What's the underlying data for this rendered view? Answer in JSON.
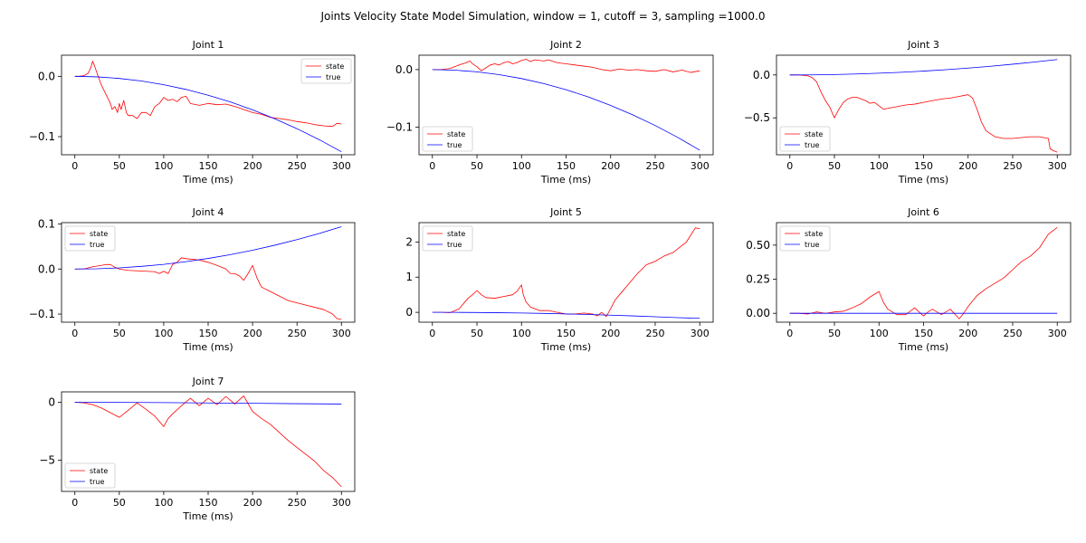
{
  "figure": {
    "suptitle": "Joints Velocity State Model Simulation, window = 1, cutoff = 3, sampling =1000.0"
  },
  "colors": {
    "state": "#ff0000",
    "true": "#0000ff"
  },
  "chart_data": [
    {
      "type": "line",
      "title": "Joint 1",
      "xlabel": "Time (ms)",
      "ylabel": "",
      "xlim": [
        -15,
        315
      ],
      "ylim": [
        -0.13,
        0.035
      ],
      "xticks": [
        0,
        50,
        100,
        150,
        200,
        250,
        300
      ],
      "xtick_labels": [
        "0",
        "50",
        "100",
        "150",
        "200",
        "250",
        "300"
      ],
      "yticks": [
        0.0,
        -0.1
      ],
      "ytick_labels": [
        "0.0",
        "−0.1"
      ],
      "legend": "top-right",
      "grid": false,
      "series": [
        {
          "name": "state",
          "x": [
            0,
            5,
            10,
            15,
            18,
            20,
            22,
            25,
            30,
            35,
            40,
            42,
            45,
            48,
            50,
            52,
            55,
            58,
            60,
            65,
            70,
            75,
            80,
            85,
            90,
            95,
            100,
            105,
            110,
            115,
            120,
            125,
            130,
            140,
            150,
            160,
            170,
            180,
            190,
            200,
            210,
            220,
            230,
            240,
            250,
            260,
            270,
            280,
            290,
            295,
            300
          ],
          "y": [
            0.0,
            0.0,
            0.001,
            0.005,
            0.015,
            0.025,
            0.018,
            0.005,
            -0.015,
            -0.03,
            -0.045,
            -0.055,
            -0.05,
            -0.06,
            -0.045,
            -0.055,
            -0.04,
            -0.06,
            -0.065,
            -0.065,
            -0.07,
            -0.06,
            -0.06,
            -0.065,
            -0.05,
            -0.045,
            -0.035,
            -0.04,
            -0.038,
            -0.042,
            -0.035,
            -0.033,
            -0.045,
            -0.048,
            -0.045,
            -0.047,
            -0.046,
            -0.05,
            -0.055,
            -0.06,
            -0.063,
            -0.068,
            -0.07,
            -0.072,
            -0.075,
            -0.077,
            -0.08,
            -0.082,
            -0.083,
            -0.078,
            -0.079
          ]
        },
        {
          "name": "true",
          "x": [
            0,
            25,
            50,
            75,
            100,
            125,
            150,
            175,
            200,
            225,
            250,
            275,
            300
          ],
          "y": [
            0.0,
            -0.0009,
            -0.0035,
            -0.0078,
            -0.0139,
            -0.0217,
            -0.0313,
            -0.0425,
            -0.0556,
            -0.0703,
            -0.0868,
            -0.105,
            -0.125
          ]
        }
      ]
    },
    {
      "type": "line",
      "title": "Joint 2",
      "xlabel": "Time (ms)",
      "ylabel": "",
      "xlim": [
        -15,
        315
      ],
      "ylim": [
        -0.148,
        0.025
      ],
      "xticks": [
        0,
        50,
        100,
        150,
        200,
        250,
        300
      ],
      "xtick_labels": [
        "0",
        "50",
        "100",
        "150",
        "200",
        "250",
        "300"
      ],
      "yticks": [
        0.0,
        -0.1
      ],
      "ytick_labels": [
        "0.0",
        "−0.1"
      ],
      "legend": "bottom-left",
      "grid": false,
      "series": [
        {
          "name": "state",
          "x": [
            0,
            10,
            20,
            30,
            38,
            42,
            45,
            50,
            55,
            60,
            65,
            70,
            75,
            80,
            85,
            90,
            95,
            100,
            105,
            110,
            115,
            120,
            125,
            130,
            140,
            150,
            160,
            170,
            180,
            190,
            200,
            210,
            220,
            230,
            240,
            250,
            260,
            270,
            280,
            290,
            300
          ],
          "y": [
            0.0,
            0.0,
            0.002,
            0.008,
            0.012,
            0.015,
            0.01,
            0.005,
            -0.002,
            0.003,
            0.008,
            0.01,
            0.008,
            0.012,
            0.014,
            0.01,
            0.012,
            0.016,
            0.018,
            0.014,
            0.017,
            0.016,
            0.015,
            0.017,
            0.012,
            0.01,
            0.008,
            0.006,
            0.004,
            0.0,
            -0.002,
            0.001,
            -0.001,
            0.0,
            -0.002,
            -0.003,
            0.0,
            -0.004,
            -0.001,
            -0.005,
            -0.002
          ]
        },
        {
          "name": "true",
          "x": [
            0,
            25,
            50,
            75,
            100,
            125,
            150,
            175,
            200,
            225,
            250,
            275,
            300
          ],
          "y": [
            0.0,
            -0.001,
            -0.0039,
            -0.0088,
            -0.0156,
            -0.0243,
            -0.035,
            -0.0476,
            -0.0622,
            -0.0788,
            -0.0972,
            -0.1176,
            -0.14
          ]
        }
      ]
    },
    {
      "type": "line",
      "title": "Joint 3",
      "xlabel": "Time (ms)",
      "ylabel": "",
      "xlim": [
        -15,
        315
      ],
      "ylim": [
        -0.93,
        0.23
      ],
      "xticks": [
        0,
        50,
        100,
        150,
        200,
        250,
        300
      ],
      "xtick_labels": [
        "0",
        "50",
        "100",
        "150",
        "200",
        "250",
        "300"
      ],
      "yticks": [
        0.0,
        -0.5
      ],
      "ytick_labels": [
        "0.0",
        "−0.5"
      ],
      "legend": "bottom-left",
      "grid": false,
      "series": [
        {
          "name": "state",
          "x": [
            0,
            10,
            20,
            25,
            30,
            35,
            40,
            45,
            50,
            55,
            60,
            65,
            70,
            75,
            80,
            85,
            90,
            95,
            100,
            105,
            110,
            120,
            130,
            140,
            150,
            160,
            170,
            180,
            190,
            195,
            200,
            205,
            210,
            215,
            220,
            230,
            240,
            250,
            260,
            270,
            280,
            290,
            292,
            295,
            300
          ],
          "y": [
            0.0,
            0.0,
            -0.01,
            -0.03,
            -0.08,
            -0.2,
            -0.3,
            -0.38,
            -0.5,
            -0.4,
            -0.32,
            -0.28,
            -0.26,
            -0.26,
            -0.28,
            -0.3,
            -0.33,
            -0.32,
            -0.36,
            -0.4,
            -0.39,
            -0.37,
            -0.35,
            -0.34,
            -0.32,
            -0.3,
            -0.28,
            -0.27,
            -0.25,
            -0.24,
            -0.23,
            -0.27,
            -0.4,
            -0.55,
            -0.65,
            -0.72,
            -0.74,
            -0.74,
            -0.73,
            -0.72,
            -0.72,
            -0.74,
            -0.86,
            -0.88,
            -0.9
          ]
        },
        {
          "name": "true",
          "x": [
            0,
            25,
            50,
            75,
            100,
            125,
            150,
            175,
            200,
            225,
            250,
            275,
            300
          ],
          "y": [
            0.0,
            0.001,
            0.005,
            0.011,
            0.02,
            0.031,
            0.045,
            0.061,
            0.08,
            0.101,
            0.125,
            0.151,
            0.18
          ]
        }
      ]
    },
    {
      "type": "line",
      "title": "Joint 4",
      "xlabel": "Time (ms)",
      "ylabel": "",
      "xlim": [
        -15,
        315
      ],
      "ylim": [
        -0.118,
        0.103
      ],
      "xticks": [
        0,
        50,
        100,
        150,
        200,
        250,
        300
      ],
      "xtick_labels": [
        "0",
        "50",
        "100",
        "150",
        "200",
        "250",
        "300"
      ],
      "yticks": [
        0.1,
        0.0,
        -0.1
      ],
      "ytick_labels": [
        "0.1",
        "0.0",
        "−0.1"
      ],
      "legend": "top-left",
      "grid": false,
      "series": [
        {
          "name": "state",
          "x": [
            0,
            10,
            20,
            30,
            35,
            40,
            45,
            50,
            60,
            70,
            80,
            90,
            95,
            100,
            105,
            110,
            115,
            120,
            125,
            130,
            140,
            150,
            160,
            170,
            175,
            180,
            185,
            190,
            195,
            200,
            205,
            210,
            220,
            230,
            240,
            250,
            260,
            270,
            280,
            290,
            295,
            300
          ],
          "y": [
            0.0,
            0.0,
            0.005,
            0.008,
            0.01,
            0.01,
            0.004,
            0.0,
            -0.003,
            -0.004,
            -0.005,
            -0.006,
            -0.01,
            -0.005,
            -0.01,
            0.01,
            0.015,
            0.025,
            0.023,
            0.022,
            0.02,
            0.015,
            0.008,
            0.0,
            -0.01,
            -0.01,
            -0.015,
            -0.025,
            -0.01,
            0.008,
            -0.02,
            -0.04,
            -0.05,
            -0.06,
            -0.07,
            -0.075,
            -0.08,
            -0.085,
            -0.09,
            -0.1,
            -0.11,
            -0.112
          ]
        },
        {
          "name": "true",
          "x": [
            0,
            25,
            50,
            75,
            100,
            125,
            150,
            175,
            200,
            225,
            250,
            275,
            300
          ],
          "y": [
            0.0,
            0.0006,
            0.0026,
            0.0059,
            0.0104,
            0.0163,
            0.0235,
            0.032,
            0.0418,
            0.0529,
            0.0653,
            0.079,
            0.094
          ]
        }
      ]
    },
    {
      "type": "line",
      "title": "Joint 5",
      "xlabel": "Time (ms)",
      "ylabel": "",
      "xlim": [
        -15,
        315
      ],
      "ylim": [
        -0.28,
        2.55
      ],
      "xticks": [
        0,
        50,
        100,
        150,
        200,
        250,
        300
      ],
      "xtick_labels": [
        "0",
        "50",
        "100",
        "150",
        "200",
        "250",
        "300"
      ],
      "yticks": [
        2,
        1,
        0
      ],
      "ytick_labels": [
        "2",
        "1",
        "0"
      ],
      "legend": "top-left",
      "grid": false,
      "series": [
        {
          "name": "state",
          "x": [
            0,
            10,
            20,
            30,
            40,
            45,
            50,
            55,
            60,
            70,
            80,
            90,
            95,
            100,
            102,
            105,
            110,
            120,
            130,
            140,
            150,
            160,
            170,
            180,
            185,
            190,
            195,
            200,
            205,
            210,
            220,
            230,
            240,
            250,
            260,
            270,
            280,
            285,
            290,
            295,
            300
          ],
          "y": [
            0.0,
            0.0,
            -0.01,
            0.1,
            0.4,
            0.5,
            0.62,
            0.5,
            0.42,
            0.4,
            0.45,
            0.5,
            0.6,
            0.78,
            0.5,
            0.3,
            0.15,
            0.05,
            0.05,
            0.0,
            -0.05,
            -0.05,
            -0.02,
            -0.05,
            -0.1,
            0.0,
            -0.12,
            0.1,
            0.35,
            0.5,
            0.8,
            1.1,
            1.35,
            1.45,
            1.6,
            1.7,
            1.9,
            2.0,
            2.2,
            2.4,
            2.38
          ]
        },
        {
          "name": "true",
          "x": [
            0,
            25,
            50,
            75,
            100,
            125,
            150,
            175,
            200,
            225,
            250,
            275,
            300
          ],
          "y": [
            0.0,
            -0.001,
            -0.005,
            -0.011,
            -0.02,
            -0.031,
            -0.045,
            -0.061,
            -0.08,
            -0.101,
            -0.125,
            -0.151,
            -0.17
          ]
        }
      ]
    },
    {
      "type": "line",
      "title": "Joint 6",
      "xlabel": "Time (ms)",
      "ylabel": "",
      "xlim": [
        -15,
        315
      ],
      "ylim": [
        -0.065,
        0.665
      ],
      "xticks": [
        0,
        50,
        100,
        150,
        200,
        250,
        300
      ],
      "xtick_labels": [
        "0",
        "50",
        "100",
        "150",
        "200",
        "250",
        "300"
      ],
      "yticks": [
        0.5,
        0.25,
        0.0
      ],
      "ytick_labels": [
        "0.50",
        "0.25",
        "0.00"
      ],
      "legend": "top-left",
      "grid": false,
      "series": [
        {
          "name": "state",
          "x": [
            0,
            10,
            20,
            30,
            40,
            50,
            60,
            70,
            80,
            90,
            95,
            100,
            105,
            110,
            120,
            130,
            140,
            145,
            150,
            155,
            160,
            170,
            180,
            190,
            195,
            200,
            210,
            220,
            230,
            240,
            250,
            260,
            270,
            280,
            290,
            300
          ],
          "y": [
            0.0,
            0.0,
            -0.005,
            0.01,
            0.0,
            0.01,
            0.015,
            0.04,
            0.07,
            0.12,
            0.14,
            0.16,
            0.08,
            0.03,
            -0.01,
            -0.01,
            0.04,
            0.01,
            -0.02,
            0.01,
            0.03,
            -0.01,
            0.03,
            -0.04,
            0.0,
            0.05,
            0.13,
            0.18,
            0.22,
            0.26,
            0.32,
            0.38,
            0.42,
            0.48,
            0.58,
            0.63
          ]
        },
        {
          "name": "true",
          "x": [
            0,
            50,
            100,
            150,
            200,
            250,
            300
          ],
          "y": [
            0.0,
            0.0,
            0.0,
            0.0,
            0.0,
            0.0,
            0.0
          ]
        }
      ]
    },
    {
      "type": "line",
      "title": "Joint 7",
      "xlabel": "Time (ms)",
      "ylabel": "",
      "xlim": [
        -15,
        315
      ],
      "ylim": [
        -7.7,
        0.9
      ],
      "xticks": [
        0,
        50,
        100,
        150,
        200,
        250,
        300
      ],
      "xtick_labels": [
        "0",
        "50",
        "100",
        "150",
        "200",
        "250",
        "300"
      ],
      "yticks": [
        0,
        -5
      ],
      "ytick_labels": [
        "0",
        "−5"
      ],
      "legend": "bottom-left",
      "grid": false,
      "series": [
        {
          "name": "state",
          "x": [
            0,
            10,
            20,
            30,
            40,
            50,
            60,
            70,
            80,
            90,
            100,
            102,
            105,
            110,
            120,
            130,
            140,
            150,
            160,
            170,
            180,
            190,
            200,
            210,
            220,
            230,
            240,
            250,
            260,
            270,
            280,
            290,
            300
          ],
          "y": [
            0.0,
            -0.05,
            -0.2,
            -0.5,
            -0.9,
            -1.3,
            -0.7,
            -0.05,
            -0.6,
            -1.2,
            -2.1,
            -1.8,
            -1.4,
            -1.0,
            -0.3,
            0.35,
            -0.3,
            0.35,
            -0.2,
            0.5,
            -0.15,
            0.55,
            -0.8,
            -1.4,
            -1.9,
            -2.6,
            -3.3,
            -3.9,
            -4.5,
            -5.1,
            -5.9,
            -6.5,
            -7.3
          ]
        },
        {
          "name": "true",
          "x": [
            0,
            50,
            100,
            150,
            200,
            250,
            300
          ],
          "y": [
            0.0,
            -0.01,
            -0.03,
            -0.06,
            -0.09,
            -0.12,
            -0.15
          ]
        }
      ]
    }
  ]
}
